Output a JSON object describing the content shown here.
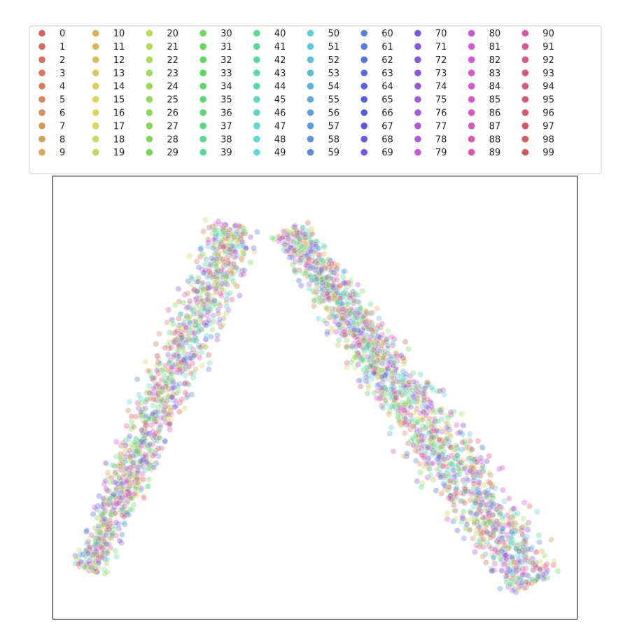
{
  "chart_data": {
    "type": "scatter",
    "title": "",
    "xlabel": "",
    "ylabel": "",
    "grid": false,
    "axis_ticks": false,
    "xlim": [
      0,
      100
    ],
    "ylim": [
      0,
      100
    ],
    "legend": {
      "placement": "top",
      "columns": 10,
      "rows": 10,
      "entries": [
        "0",
        "1",
        "2",
        "3",
        "4",
        "5",
        "6",
        "7",
        "8",
        "9",
        "10",
        "11",
        "12",
        "13",
        "14",
        "15",
        "16",
        "17",
        "18",
        "19",
        "20",
        "21",
        "22",
        "23",
        "24",
        "25",
        "26",
        "27",
        "28",
        "29",
        "30",
        "31",
        "32",
        "33",
        "34",
        "35",
        "36",
        "37",
        "38",
        "39",
        "40",
        "41",
        "42",
        "43",
        "44",
        "45",
        "46",
        "47",
        "48",
        "49",
        "50",
        "51",
        "52",
        "53",
        "54",
        "55",
        "56",
        "57",
        "58",
        "59",
        "60",
        "61",
        "62",
        "63",
        "64",
        "65",
        "66",
        "67",
        "68",
        "69",
        "70",
        "71",
        "72",
        "73",
        "74",
        "75",
        "76",
        "77",
        "78",
        "79",
        "80",
        "81",
        "82",
        "83",
        "84",
        "85",
        "86",
        "87",
        "88",
        "89",
        "90",
        "91",
        "92",
        "93",
        "94",
        "95",
        "96",
        "97",
        "98",
        "99"
      ]
    },
    "palette": "hls, 100 hues from red (#db5f57) through yellow, green, cyan, blue, purple, magenta back to red",
    "point_alpha": 0.35,
    "point_count_approx": 3000,
    "shape": "arch of two lobes meeting at the top-center; left lobe spans x 4-43, right lobe spans x 42-96; peak near y 92",
    "series": []
  }
}
